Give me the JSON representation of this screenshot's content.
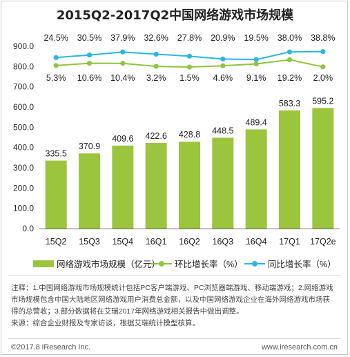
{
  "title": "2015Q2-2017Q2中国网络游戏市场规模",
  "chart_data": {
    "type": "bar",
    "categories": [
      "15Q2",
      "15Q3",
      "15Q4",
      "16Q1",
      "16Q2",
      "16Q3",
      "16Q4",
      "17Q1",
      "17Q2e"
    ],
    "ylim": [
      0,
      900
    ],
    "yticks": [
      "0.0",
      "100.0",
      "200.0",
      "300.0",
      "400.0",
      "500.0",
      "600.0",
      "700.0",
      "800.0",
      "900.0"
    ],
    "grid": false,
    "legend_position": "bottom",
    "series": [
      {
        "name": "网络游戏市场规模（亿元）",
        "type": "bar",
        "color": "#9bc53d",
        "values": [
          335.5,
          370.9,
          409.6,
          422.6,
          428.8,
          448.5,
          489.4,
          583.3,
          595.2
        ],
        "labels": [
          "335.5",
          "370.9",
          "409.6",
          "422.6",
          "428.8",
          "448.5",
          "489.4",
          "583.3",
          "595.2"
        ]
      },
      {
        "name": "环比增长率（%）",
        "type": "line",
        "color": "#8dc63f",
        "values": [
          5.3,
          10.6,
          10.4,
          3.2,
          1.5,
          4.6,
          9.1,
          19.2,
          2.0
        ],
        "labels": [
          "5.3%",
          "10.6%",
          "10.4%",
          "3.2%",
          "1.5%",
          "4.6%",
          "9.1%",
          "19.2%",
          "2.0%"
        ]
      },
      {
        "name": "同比增长率（%）",
        "type": "line",
        "color": "#29b6e8",
        "values": [
          24.5,
          30.5,
          37.9,
          32.6,
          27.8,
          20.9,
          19.5,
          38.0,
          38.8
        ],
        "labels": [
          "24.5%",
          "30.5%",
          "37.9%",
          "32.6%",
          "27.8%",
          "20.9%",
          "19.5%",
          "38.0%",
          "38.8%"
        ]
      }
    ]
  },
  "notes": {
    "line1": "注释：1.中国网络游戏市场规模统计包括PC客户端游戏、PC浏览器端游戏、移动端游戏；2.网络游戏",
    "line2": "市场规模包含中国大陆地区网络游戏用户消费总金额，以及中国网络游戏企业在海外网络游戏市场获",
    "line3": "得的总营收；3.部分数据将在艾瑞2017年网络游戏相关报告中做出调整。",
    "line4": "来源：综合企业财报及专家访谈，根据艾瑞统计模型核算。"
  },
  "footer": {
    "copyright": "©2017.8 iResearch Inc.",
    "website": "www.iresearch.com.cn"
  }
}
